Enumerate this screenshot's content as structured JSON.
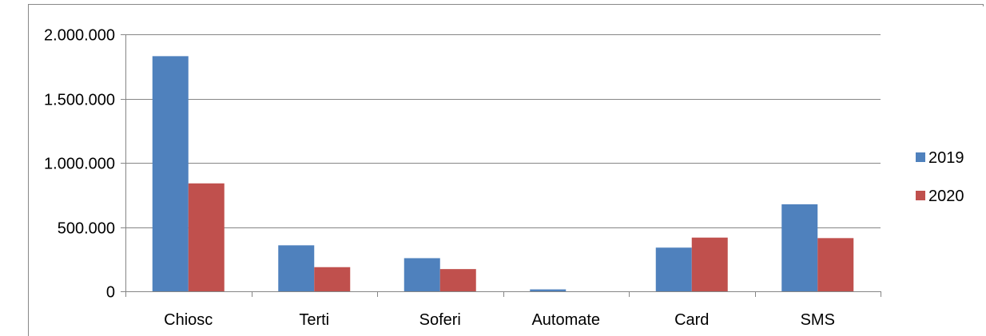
{
  "chart_data": {
    "type": "bar",
    "categories": [
      "Chiosc",
      "Terti",
      "Soferi",
      "Automate",
      "Card",
      "SMS"
    ],
    "series": [
      {
        "name": "2019",
        "color": "#4F81BD",
        "values": [
          1830000,
          358000,
          258000,
          15000,
          340000,
          677000
        ]
      },
      {
        "name": "2020",
        "color": "#C0504D",
        "values": [
          840000,
          188000,
          173000,
          0,
          418000,
          414000
        ]
      }
    ],
    "ylim": [
      0,
      2000000
    ],
    "yticks": [
      0,
      500000,
      1000000,
      1500000,
      2000000
    ],
    "ytick_labels": [
      "0",
      "500.000",
      "1.000.000",
      "1.500.000",
      "2.000.000"
    ],
    "grid": true,
    "legend": "right",
    "title": "",
    "xlabel": "",
    "ylabel": ""
  }
}
